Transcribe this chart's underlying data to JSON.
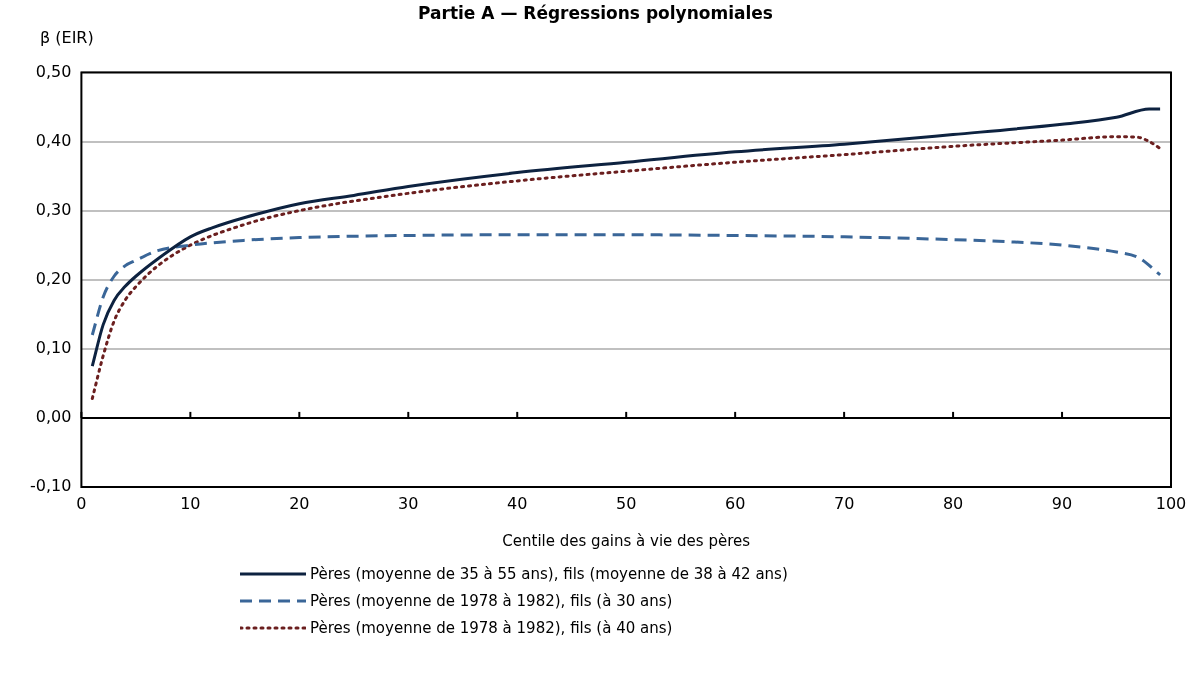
{
  "chart_data": {
    "type": "line",
    "title": "Partie A — Régressions polynomiales",
    "xlabel": "Centile des gains à vie des pères",
    "ylabel": "β (EIR)",
    "xlim": [
      0,
      100
    ],
    "xticks": [
      0,
      10,
      20,
      30,
      40,
      50,
      60,
      70,
      80,
      90,
      100
    ],
    "ylim": [
      -0.1,
      0.5
    ],
    "yticks": [
      {
        "value": -0.1,
        "label": "-0,10"
      },
      {
        "value": 0,
        "label": "0,00"
      },
      {
        "value": 0.1,
        "label": "0,10"
      },
      {
        "value": 0.2,
        "label": "0,20"
      },
      {
        "value": 0.3,
        "label": "0,30"
      },
      {
        "value": 0.4,
        "label": "0,40"
      },
      {
        "value": 0.5,
        "label": "0,50"
      }
    ],
    "grid": "y",
    "legend": "bottom",
    "marker": "none",
    "series": [
      {
        "name": "Pères (moyenne de 35 à 55 ans), fils (moyenne de 38 à 42 ans)",
        "color": "#0d2240",
        "line_style": "solid",
        "x": [
          1,
          2,
          3,
          4,
          5,
          7,
          10,
          12,
          15,
          20,
          25,
          30,
          40,
          50,
          60,
          70,
          80,
          90,
          95,
          98,
          99
        ],
        "values": [
          0.075,
          0.135,
          0.17,
          0.19,
          0.205,
          0.23,
          0.262,
          0.275,
          0.29,
          0.31,
          0.322,
          0.335,
          0.355,
          0.37,
          0.385,
          0.396,
          0.41,
          0.425,
          0.435,
          0.447,
          0.447
        ]
      },
      {
        "name": "Pères (moyenne de 1978 à 1982), fils (à 30 ans)",
        "color": "#3a6698",
        "line_style": "dashed",
        "x": [
          1,
          2,
          3,
          4,
          5,
          7,
          10,
          15,
          20,
          30,
          40,
          50,
          60,
          70,
          80,
          85,
          90,
          95,
          97,
          99
        ],
        "values": [
          0.12,
          0.175,
          0.205,
          0.22,
          0.228,
          0.242,
          0.25,
          0.257,
          0.261,
          0.264,
          0.265,
          0.265,
          0.264,
          0.262,
          0.258,
          0.255,
          0.25,
          0.24,
          0.232,
          0.207
        ]
      },
      {
        "name": "Pères (moyenne de 1978 à 1982), fils (à 40 ans)",
        "color": "#6b1f1f",
        "line_style": "dotted",
        "x": [
          1,
          2,
          3,
          4,
          5,
          7,
          10,
          15,
          20,
          30,
          40,
          50,
          60,
          70,
          80,
          90,
          95,
          97,
          98,
          99
        ],
        "values": [
          0.028,
          0.09,
          0.14,
          0.17,
          0.19,
          0.22,
          0.25,
          0.28,
          0.3,
          0.325,
          0.343,
          0.357,
          0.37,
          0.381,
          0.393,
          0.402,
          0.407,
          0.406,
          0.4,
          0.39
        ]
      }
    ]
  }
}
